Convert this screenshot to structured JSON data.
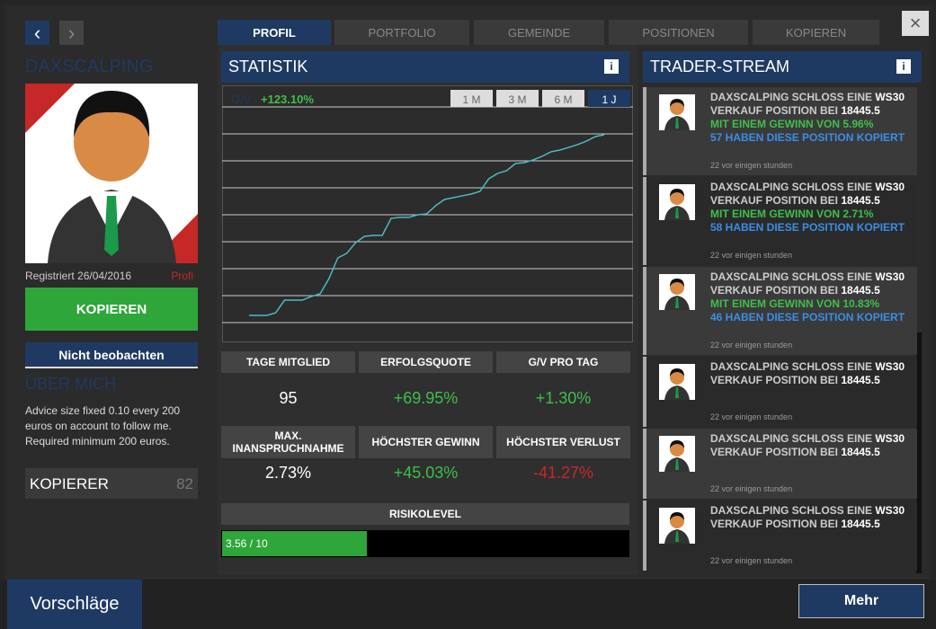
{
  "nav": {
    "tabs": [
      "PROFIL",
      "PORTFOLIO",
      "GEMEINDE",
      "POSITIONEN",
      "KOPIEREN"
    ]
  },
  "profile": {
    "name": "DAXSCALPING",
    "registered": "Registriert 26/04/2016",
    "level": "Profi",
    "copy_button": "KOPIEREN",
    "watch_button": "Nicht beobachten",
    "about_title": "ÜBER MICH",
    "about_text": "Advice size fixed 0.10 every 200 euros on account to follow me. Required minimum 200 euros.",
    "copiers_label": "KOPIERER",
    "copiers_count": 82
  },
  "statistics": {
    "title": "STATISTIK",
    "chart": {
      "type": "line",
      "label": "G/V",
      "gain": "+123.10%",
      "ranges": [
        "1 M",
        "3 M",
        "6 M",
        "1 J"
      ],
      "active_range": 3,
      "color": "#4fb8c4",
      "values": [
        0,
        0,
        0,
        1.8,
        10.4,
        10.4,
        10.4,
        12.9,
        14.7,
        25.1,
        39.2,
        42.3,
        49.6,
        53.9,
        54.5,
        54.5,
        66.2,
        66.8,
        66.8,
        68.6,
        69.2,
        74.7,
        79.0,
        80.2,
        81.5,
        82.7,
        84.5,
        93.1,
        96.8,
        98.6,
        103.5,
        104.1,
        106.0,
        108.4,
        111.5,
        112.7,
        114.5,
        116.4,
        118.8,
        121.9,
        123.1
      ]
    },
    "cells": [
      {
        "label": "TAGE MITGLIED",
        "value": "95",
        "tone": "neutral"
      },
      {
        "label": "ERFOLGSQUOTE",
        "value": "+69.95%",
        "tone": "positive"
      },
      {
        "label": "G/V PRO TAG",
        "value": "+1.30%",
        "tone": "positive"
      },
      {
        "label": "MAX. INANSPRUCHNAHME",
        "value": "2.73%",
        "tone": "neutral"
      },
      {
        "label": "HÖCHSTER GEWINN",
        "value": "+45.03%",
        "tone": "positive"
      },
      {
        "label": "HÖCHSTER VERLUST",
        "value": "-41.27%",
        "tone": "negative"
      }
    ],
    "risk": {
      "title": "RISIKOLEVEL",
      "value": 3.56,
      "max": 10,
      "label": "3.56 / 10"
    }
  },
  "stream": {
    "title": "TRADER-STREAM",
    "items": [
      {
        "text": "DAXSCALPING SCHLOSS EINE ",
        "symbol": "WS30",
        "line2": "VERKAUF POSITION BEI ",
        "price": "18445.5",
        "gain": "MIT EINEM GEWINN VON 5.96%",
        "copied": "57 HABEN DIESE POSITION KOPIERT",
        "time": "22 vor einigen stunden"
      },
      {
        "text": "DAXSCALPING SCHLOSS EINE ",
        "symbol": "WS30",
        "line2": "VERKAUF POSITION BEI ",
        "price": "18445.5",
        "gain": "MIT EINEM GEWINN VON 2.71%",
        "copied": "58 HABEN DIESE POSITION KOPIERT",
        "time": "22 vor einigen stunden"
      },
      {
        "text": "DAXSCALPING SCHLOSS EINE ",
        "symbol": "WS30",
        "line2": "VERKAUF POSITION BEI ",
        "price": "18445.5",
        "gain": "MIT EINEM GEWINN VON 10.83%",
        "copied": "46 HABEN DIESE POSITION KOPIERT",
        "time": "22 vor einigen stunden"
      },
      {
        "text": "DAXSCALPING SCHLOSS EINE ",
        "symbol": "WS30",
        "line2": "VERKAUF POSITION BEI ",
        "price": "18445.5",
        "time": "22 vor einigen stunden"
      },
      {
        "text": "DAXSCALPING SCHLOSS EINE ",
        "symbol": "WS30",
        "line2": "VERKAUF POSITION BEI ",
        "price": "18445.5",
        "time": "22 vor einigen stunden"
      },
      {
        "text": "DAXSCALPING SCHLOSS EINE ",
        "symbol": "WS30",
        "line2": "VERKAUF POSITION BEI ",
        "price": "18445.5",
        "time": "22 vor einigen stunden"
      }
    ]
  },
  "footer": {
    "suggestions": "Vorschläge",
    "more": "Mehr"
  }
}
